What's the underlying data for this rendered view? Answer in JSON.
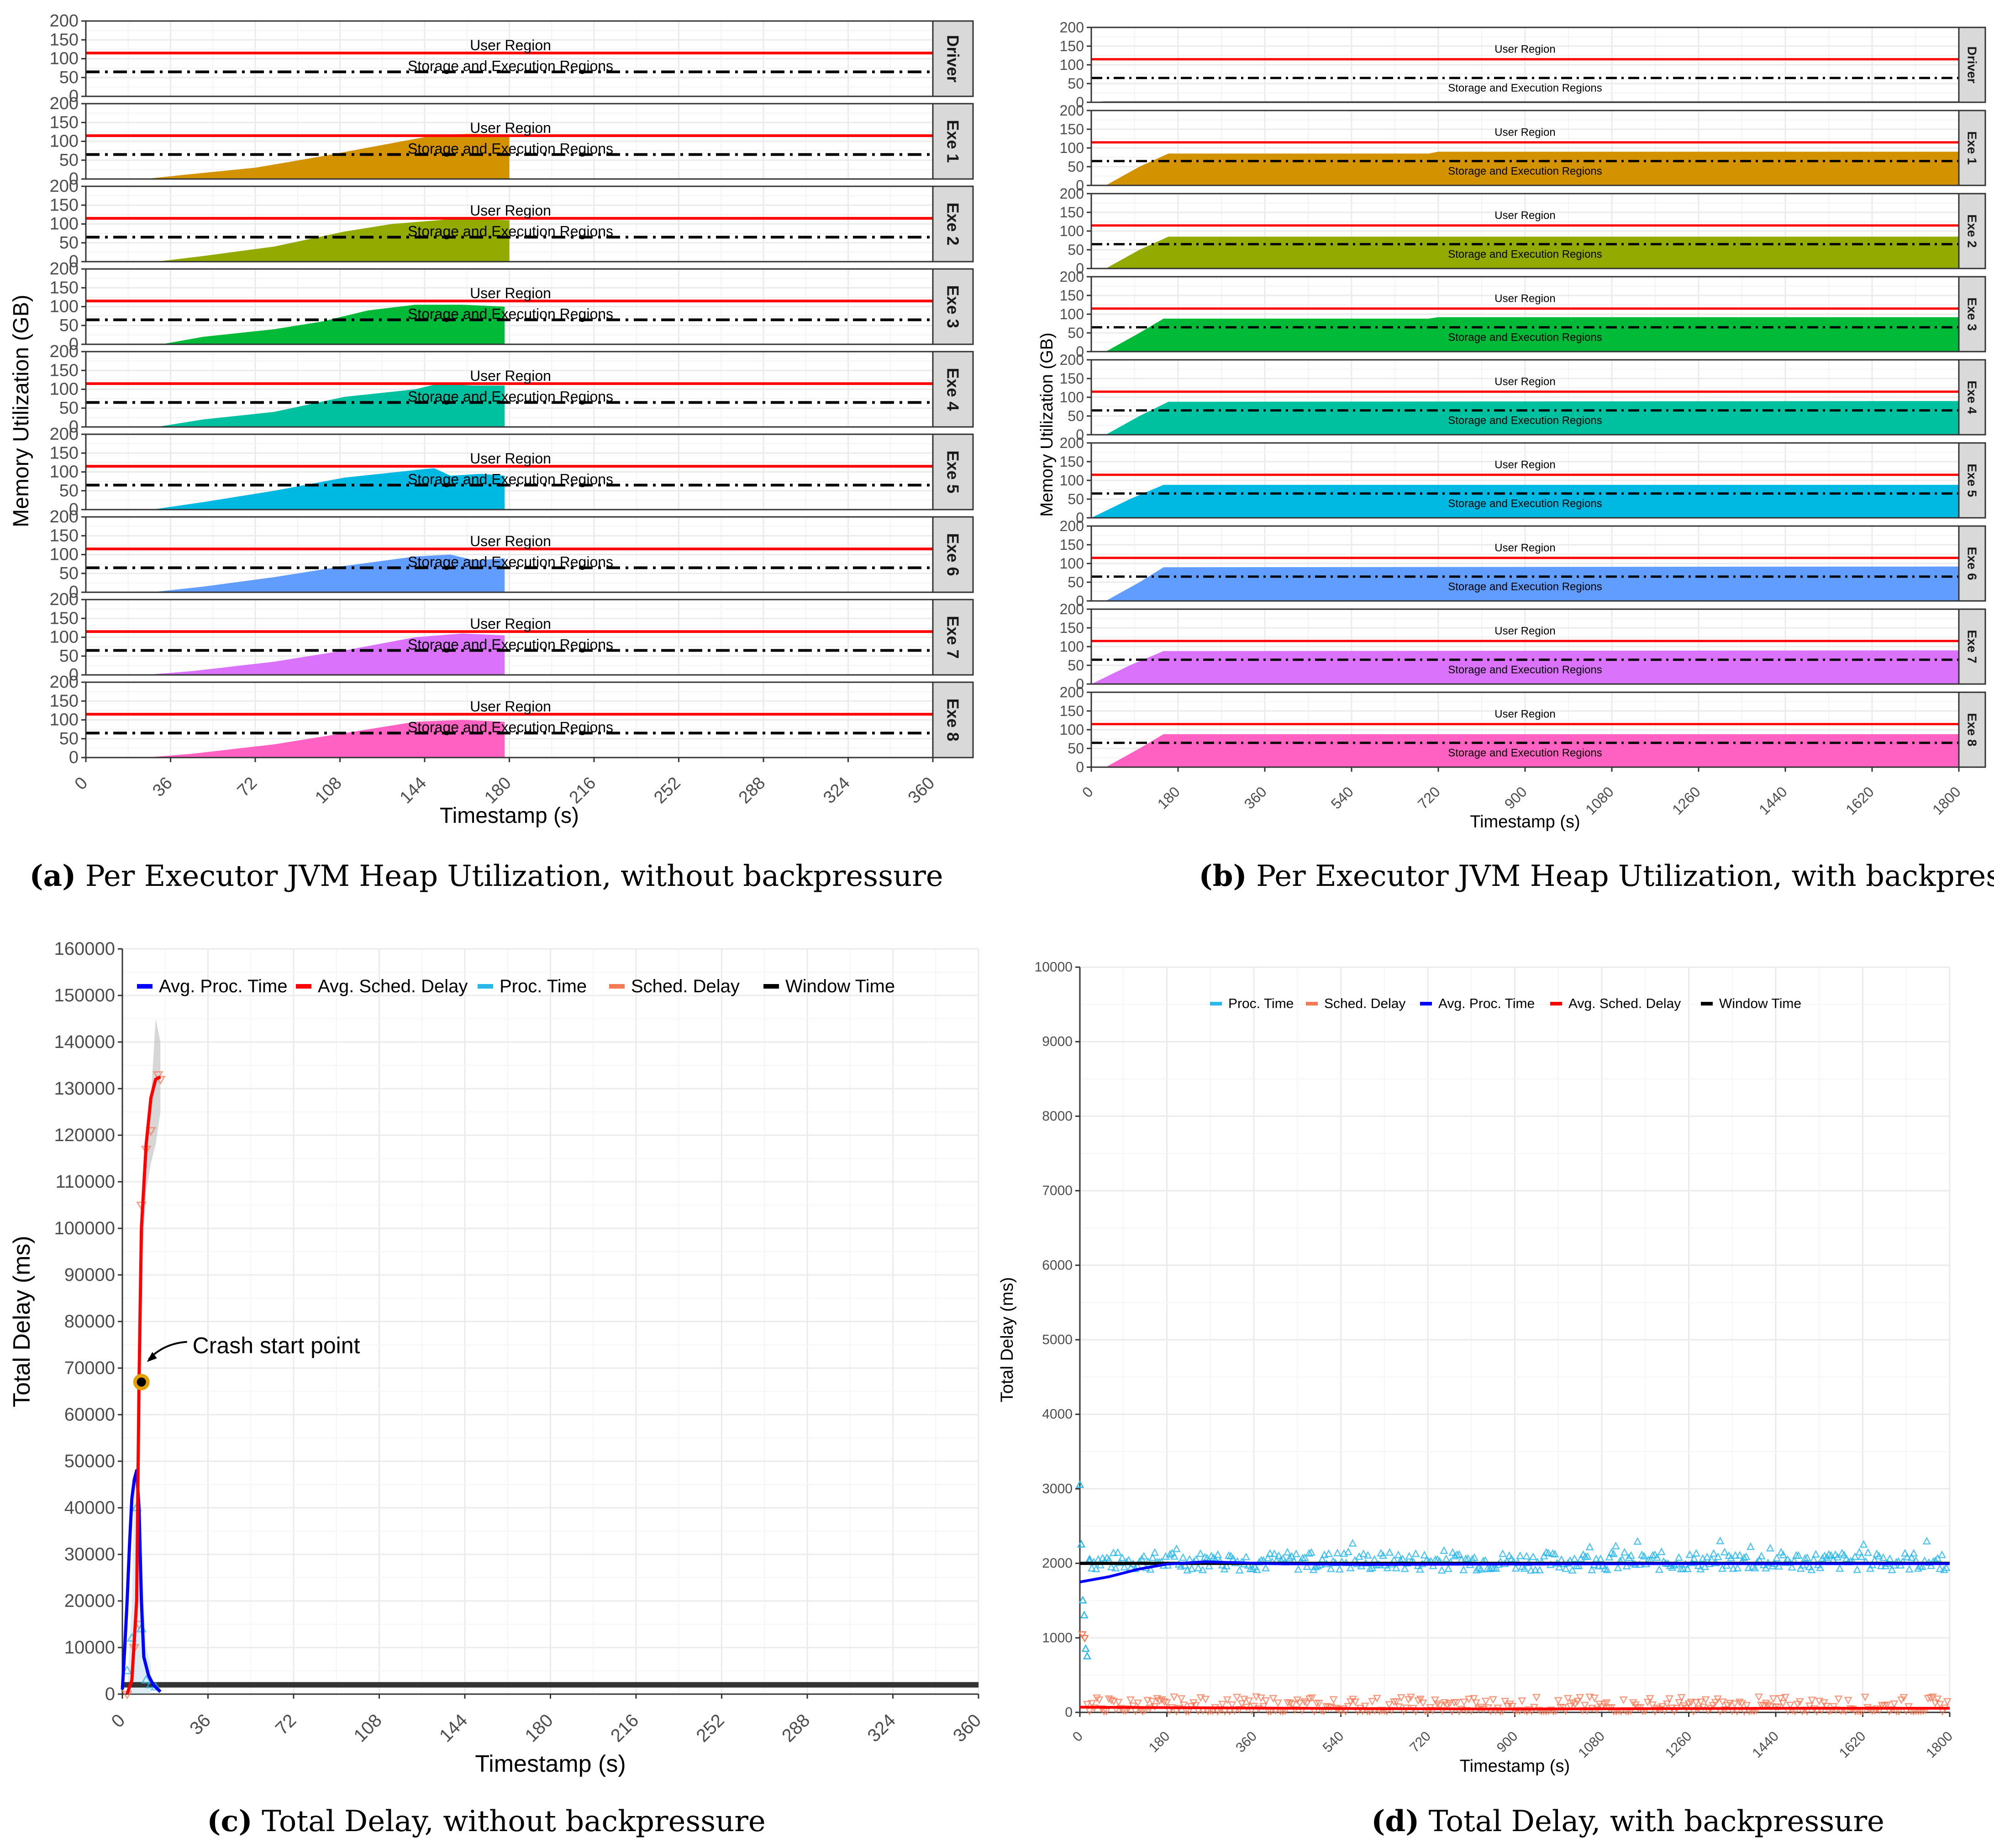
{
  "colors": {
    "exe1": "#D39200",
    "exe2": "#93AA00",
    "exe3": "#00BA38",
    "exe4": "#00C19F",
    "exe5": "#00B9E3",
    "exe6": "#619CFF",
    "exe7": "#DB72FB",
    "exe8": "#FF61C3",
    "user_line": "#ff0000",
    "storage_line": "#000000",
    "proc": "#29b6e8",
    "sched": "#f47a55",
    "avg_proc": "#0000ff",
    "avg_sched": "#ff0000",
    "window": "#333333",
    "crash_ring": "#e69f00"
  },
  "chart_data": [
    {
      "id": "a",
      "type": "area",
      "facets": [
        "Driver",
        "Exe 1",
        "Exe 2",
        "Exe 3",
        "Exe 4",
        "Exe 5",
        "Exe 6",
        "Exe 7",
        "Exe 8"
      ],
      "ylabel": "Memory Utilization (GB)",
      "xlabel": "Timestamp (s)",
      "xlim": [
        0,
        360
      ],
      "ylim": [
        0,
        200
      ],
      "x_ticks": [
        "0",
        "36",
        "72",
        "108",
        "144",
        "180",
        "216",
        "252",
        "288",
        "324",
        "360"
      ],
      "y_ticks": [
        "0",
        "50",
        "100",
        "150",
        "200"
      ],
      "user_region": 115,
      "storage_region": 65,
      "user_label": "User Region",
      "storage_label": "Storage and Execution Regions",
      "series": [
        {
          "name": "Driver",
          "points": []
        },
        {
          "name": "Exe 1",
          "points": [
            [
              25,
              0
            ],
            [
              40,
              10
            ],
            [
              72,
              30
            ],
            [
              100,
              60
            ],
            [
              130,
              95
            ],
            [
              150,
              118
            ],
            [
              165,
              120
            ],
            [
              180,
              118
            ],
            [
              180,
              0
            ]
          ]
        },
        {
          "name": "Exe 2",
          "points": [
            [
              30,
              0
            ],
            [
              50,
              15
            ],
            [
              80,
              40
            ],
            [
              110,
              80
            ],
            [
              130,
              100
            ],
            [
              160,
              115
            ],
            [
              180,
              110
            ],
            [
              180,
              0
            ]
          ]
        },
        {
          "name": "Exe 3",
          "points": [
            [
              32,
              0
            ],
            [
              50,
              20
            ],
            [
              80,
              40
            ],
            [
              100,
              60
            ],
            [
              120,
              90
            ],
            [
              140,
              105
            ],
            [
              160,
              105
            ],
            [
              178,
              100
            ],
            [
              178,
              0
            ]
          ]
        },
        {
          "name": "Exe 4",
          "points": [
            [
              30,
              0
            ],
            [
              50,
              20
            ],
            [
              80,
              40
            ],
            [
              110,
              80
            ],
            [
              140,
              100
            ],
            [
              150,
              115
            ],
            [
              165,
              110
            ],
            [
              178,
              110
            ],
            [
              178,
              0
            ]
          ]
        },
        {
          "name": "Exe 5",
          "points": [
            [
              28,
              0
            ],
            [
              50,
              20
            ],
            [
              80,
              50
            ],
            [
              110,
              85
            ],
            [
              140,
              105
            ],
            [
              148,
              110
            ],
            [
              155,
              90
            ],
            [
              168,
              95
            ],
            [
              178,
              90
            ],
            [
              178,
              0
            ]
          ]
        },
        {
          "name": "Exe 6",
          "points": [
            [
              28,
              0
            ],
            [
              50,
              15
            ],
            [
              80,
              40
            ],
            [
              110,
              70
            ],
            [
              140,
              95
            ],
            [
              155,
              100
            ],
            [
              165,
              85
            ],
            [
              178,
              90
            ],
            [
              178,
              0
            ]
          ]
        },
        {
          "name": "Exe 7",
          "points": [
            [
              25,
              0
            ],
            [
              45,
              10
            ],
            [
              80,
              35
            ],
            [
              110,
              65
            ],
            [
              140,
              100
            ],
            [
              160,
              110
            ],
            [
              178,
              105
            ],
            [
              178,
              0
            ]
          ]
        },
        {
          "name": "Exe 8",
          "points": [
            [
              25,
              0
            ],
            [
              45,
              10
            ],
            [
              80,
              35
            ],
            [
              110,
              65
            ],
            [
              140,
              95
            ],
            [
              160,
              100
            ],
            [
              178,
              95
            ],
            [
              178,
              0
            ]
          ]
        }
      ],
      "caption_label": "(a)",
      "caption_text": "Per Executor JVM Heap Utilization, without backpressure"
    },
    {
      "id": "b",
      "type": "area",
      "facets": [
        "Driver",
        "Exe 1",
        "Exe 2",
        "Exe 3",
        "Exe 4",
        "Exe 5",
        "Exe 6",
        "Exe 7",
        "Exe 8"
      ],
      "ylabel": "Memory Utilization (GB)",
      "xlabel": "Timestamp (s)",
      "xlim": [
        0,
        1800
      ],
      "ylim": [
        0,
        200
      ],
      "x_ticks": [
        "0",
        "180",
        "360",
        "540",
        "720",
        "900",
        "1080",
        "1260",
        "1440",
        "1620",
        "1800"
      ],
      "y_ticks": [
        "0",
        "50",
        "100",
        "150",
        "200"
      ],
      "user_region": 115,
      "storage_region": 65,
      "user_label": "User Region",
      "storage_label": "Storage and Execution Regions",
      "series": [
        {
          "name": "Driver",
          "points": [
            [
              0,
              0
            ],
            [
              30,
              3
            ],
            [
              1800,
              3
            ],
            [
              1800,
              0
            ]
          ]
        },
        {
          "name": "Exe 1",
          "points": [
            [
              30,
              0
            ],
            [
              100,
              50
            ],
            [
              160,
              85
            ],
            [
              700,
              85
            ],
            [
              720,
              90
            ],
            [
              1800,
              90
            ],
            [
              1800,
              0
            ]
          ]
        },
        {
          "name": "Exe 2",
          "points": [
            [
              30,
              0
            ],
            [
              100,
              50
            ],
            [
              160,
              85
            ],
            [
              1800,
              85
            ],
            [
              1800,
              0
            ]
          ]
        },
        {
          "name": "Exe 3",
          "points": [
            [
              30,
              0
            ],
            [
              100,
              50
            ],
            [
              150,
              88
            ],
            [
              700,
              88
            ],
            [
              720,
              92
            ],
            [
              1800,
              92
            ],
            [
              1800,
              0
            ]
          ]
        },
        {
          "name": "Exe 4",
          "points": [
            [
              30,
              0
            ],
            [
              100,
              50
            ],
            [
              160,
              88
            ],
            [
              1800,
              90
            ],
            [
              1800,
              0
            ]
          ]
        },
        {
          "name": "Exe 5",
          "points": [
            [
              0,
              0
            ],
            [
              80,
              50
            ],
            [
              150,
              88
            ],
            [
              1800,
              88
            ],
            [
              1800,
              0
            ]
          ]
        },
        {
          "name": "Exe 6",
          "points": [
            [
              30,
              0
            ],
            [
              100,
              50
            ],
            [
              150,
              90
            ],
            [
              1800,
              92
            ],
            [
              1800,
              0
            ]
          ]
        },
        {
          "name": "Exe 7",
          "points": [
            [
              0,
              0
            ],
            [
              80,
              50
            ],
            [
              150,
              88
            ],
            [
              1800,
              90
            ],
            [
              1800,
              0
            ]
          ]
        },
        {
          "name": "Exe 8",
          "points": [
            [
              30,
              0
            ],
            [
              100,
              50
            ],
            [
              150,
              88
            ],
            [
              1800,
              88
            ],
            [
              1800,
              0
            ]
          ]
        }
      ],
      "caption_label": "(b)",
      "caption_text": "Per Executor JVM Heap Utilization, with backpressure"
    },
    {
      "id": "c",
      "type": "line",
      "xlabel": "Timestamp (s)",
      "ylabel": "Total Delay (ms)",
      "xlim": [
        0,
        360
      ],
      "ylim": [
        0,
        160000
      ],
      "x_ticks": [
        "0",
        "36",
        "72",
        "108",
        "144",
        "180",
        "216",
        "252",
        "288",
        "324",
        "360"
      ],
      "y_ticks": [
        "0",
        "10000",
        "20000",
        "30000",
        "40000",
        "50000",
        "60000",
        "70000",
        "80000",
        "90000",
        "100000",
        "110000",
        "120000",
        "130000",
        "140000",
        "150000",
        "160000"
      ],
      "legend": [
        "Avg. Proc. Time",
        "Avg. Sched. Delay",
        "Proc. Time",
        "Sched. Delay",
        "Window Time"
      ],
      "series": [
        {
          "name": "Avg. Sched. Delay",
          "values": [
            [
              2,
              0
            ],
            [
              4,
              3000
            ],
            [
              6,
              20000
            ],
            [
              7,
              67000
            ],
            [
              8,
              100000
            ],
            [
              10,
              118000
            ],
            [
              12,
              128000
            ],
            [
              14,
              132000
            ],
            [
              16,
              132500
            ]
          ]
        },
        {
          "name": "Avg. Proc. Time",
          "values": [
            [
              0,
              1000
            ],
            [
              1,
              10000
            ],
            [
              2,
              20000
            ],
            [
              3,
              32000
            ],
            [
              4,
              42000
            ],
            [
              5,
              46000
            ],
            [
              6,
              48000
            ],
            [
              7,
              40000
            ],
            [
              8,
              20000
            ],
            [
              9,
              8000
            ],
            [
              11,
              4000
            ],
            [
              13,
              2000
            ],
            [
              16,
              500
            ]
          ]
        },
        {
          "name": "Sched. Delay",
          "values": [
            [
              2,
              0
            ],
            [
              5,
              10000
            ],
            [
              7,
              15000
            ],
            [
              8,
              105000
            ],
            [
              10,
              117000
            ],
            [
              12,
              121000
            ],
            [
              15,
              133000
            ],
            [
              16,
              132000
            ]
          ]
        },
        {
          "name": "Proc. Time",
          "values": [
            [
              2,
              5000
            ],
            [
              4,
              12000
            ],
            [
              6,
              40000
            ],
            [
              8,
              14000
            ],
            [
              10,
              3000
            ],
            [
              12,
              2000
            ],
            [
              14,
              1500
            ]
          ]
        },
        {
          "name": "Window Time",
          "values": [
            [
              0,
              2000
            ],
            [
              360,
              2000
            ]
          ]
        }
      ],
      "annotation": "Crash start point",
      "crash_point": [
        8,
        67000
      ],
      "caption_label": "(c)",
      "caption_text": "Total Delay, without backpressure"
    },
    {
      "id": "d",
      "type": "scatter",
      "xlabel": "Timestamp (s)",
      "ylabel": "Total Delay (ms)",
      "xlim": [
        0,
        1800
      ],
      "ylim": [
        0,
        10000
      ],
      "x_ticks": [
        "0",
        "180",
        "360",
        "540",
        "720",
        "900",
        "1080",
        "1260",
        "1440",
        "1620",
        "1800"
      ],
      "y_ticks": [
        "0",
        "1000",
        "2000",
        "3000",
        "4000",
        "5000",
        "6000",
        "7000",
        "8000",
        "9000",
        "10000"
      ],
      "legend": [
        "Proc. Time",
        "Sched. Delay",
        "Avg. Proc. Time",
        "Avg. Sched. Delay",
        "Window Time"
      ],
      "series": [
        {
          "name": "Proc. Time",
          "values": [
            [
              0,
              3050
            ],
            [
              3,
              2250
            ],
            [
              6,
              1500
            ],
            [
              9,
              1300
            ],
            [
              12,
              850
            ],
            [
              15,
              750
            ],
            [
              20,
              2050
            ]
          ],
          "band": [
            1900,
            2150
          ]
        },
        {
          "name": "Sched. Delay",
          "values": [
            [
              5,
              1050
            ],
            [
              10,
              1000
            ]
          ],
          "band": [
            0,
            200
          ]
        },
        {
          "name": "Avg. Proc. Time",
          "values": [
            [
              0,
              1750
            ],
            [
              60,
              1820
            ],
            [
              120,
              1920
            ],
            [
              180,
              1990
            ],
            [
              260,
              2020
            ],
            [
              400,
              1995
            ],
            [
              600,
              1985
            ],
            [
              900,
              1990
            ],
            [
              1200,
              1995
            ],
            [
              1500,
              1995
            ],
            [
              1800,
              1995
            ]
          ]
        },
        {
          "name": "Avg. Sched. Delay",
          "values": [
            [
              0,
              70
            ],
            [
              300,
              60
            ],
            [
              600,
              50
            ],
            [
              900,
              45
            ],
            [
              1200,
              50
            ],
            [
              1500,
              55
            ],
            [
              1800,
              55
            ]
          ]
        },
        {
          "name": "Window Time",
          "values": [
            [
              0,
              2000
            ],
            [
              1800,
              2000
            ]
          ]
        }
      ],
      "caption_label": "(d)",
      "caption_text": "Total Delay, with backpressure"
    }
  ]
}
